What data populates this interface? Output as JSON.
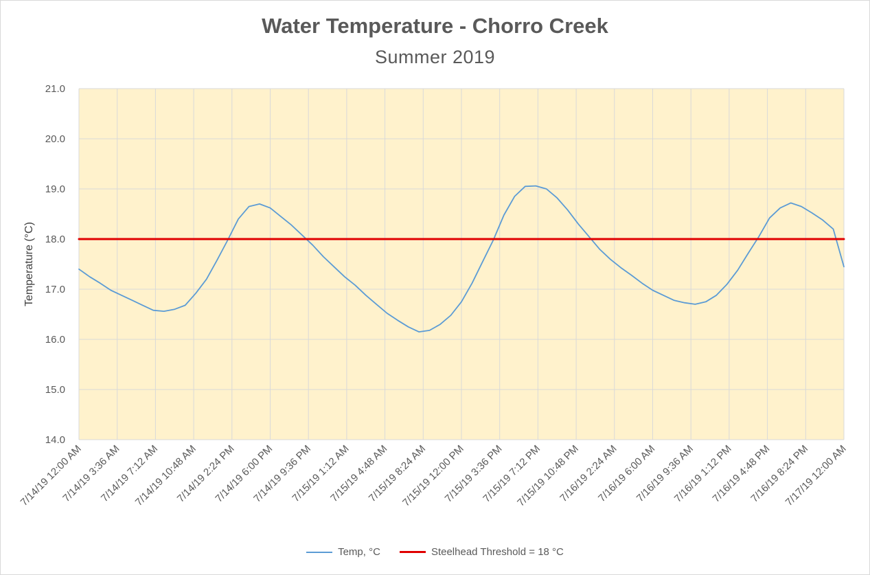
{
  "chart_data": {
    "type": "line",
    "title": "Water Temperature - Chorro Creek",
    "subtitle": "Summer  2019",
    "xlabel": "",
    "ylabel": "Temperature (°C)",
    "ylim": [
      14.0,
      21.0
    ],
    "y_ticks": [
      "14.0",
      "15.0",
      "16.0",
      "17.0",
      "18.0",
      "19.0",
      "20.0",
      "21.0"
    ],
    "x_range_hours": [
      0,
      72
    ],
    "x_ticks": [
      "7/14/19 12:00 AM",
      "7/14/19 3:36 AM",
      "7/14/19 7:12 AM",
      "7/14/19 10:48 AM",
      "7/14/19 2:24 PM",
      "7/14/19 6:00 PM",
      "7/14/19 9:36 PM",
      "7/15/19 1:12 AM",
      "7/15/19 4:48 AM",
      "7/15/19 8:24 AM",
      "7/15/19 12:00 PM",
      "7/15/19 3:36 PM",
      "7/15/19 7:12 PM",
      "7/15/19 10:48 PM",
      "7/16/19 2:24 AM",
      "7/16/19 6:00 AM",
      "7/16/19 9:36 AM",
      "7/16/19 1:12 PM",
      "7/16/19 4:48 PM",
      "7/16/19 8:24 PM",
      "7/17/19 12:00 AM"
    ],
    "grid": true,
    "plot_background": "#fff2cc",
    "series": [
      {
        "name": "Temp, °C",
        "color": "#5b9bd5",
        "x_hours": [
          0,
          1,
          2,
          3,
          4,
          5,
          6,
          7,
          8,
          9,
          10,
          11,
          12,
          13,
          14,
          15,
          16,
          17,
          18,
          19,
          20,
          21,
          22,
          23,
          24,
          25,
          26,
          27,
          28,
          29,
          30,
          31,
          32,
          33,
          34,
          35,
          36,
          37,
          38,
          39,
          40,
          41,
          42,
          43,
          44,
          45,
          46,
          47,
          48,
          49,
          50,
          51,
          52,
          53,
          54,
          55,
          56,
          57,
          58,
          59,
          60,
          61,
          62,
          63,
          64,
          65,
          66,
          67,
          68,
          69,
          70,
          71,
          72
        ],
        "values": [
          17.4,
          17.25,
          17.12,
          16.98,
          16.88,
          16.78,
          16.68,
          16.58,
          16.56,
          16.6,
          16.68,
          16.92,
          17.2,
          17.58,
          17.98,
          18.4,
          18.65,
          18.7,
          18.62,
          18.45,
          18.28,
          18.08,
          17.88,
          17.65,
          17.45,
          17.25,
          17.08,
          16.88,
          16.7,
          16.52,
          16.38,
          16.25,
          16.15,
          16.18,
          16.3,
          16.48,
          16.75,
          17.12,
          17.55,
          17.98,
          18.48,
          18.85,
          19.05,
          19.06,
          19.0,
          18.82,
          18.58,
          18.3,
          18.05,
          17.8,
          17.6,
          17.43,
          17.28,
          17.12,
          16.98,
          16.88,
          16.78,
          16.73,
          16.7,
          16.75,
          16.88,
          17.1,
          17.38,
          17.72,
          18.05,
          18.42,
          18.62,
          18.72,
          18.65,
          18.52,
          18.38,
          18.2,
          17.45
        ]
      },
      {
        "name": "Steelhead Threshold = 18 °C",
        "color": "#e00000",
        "x_hours": [
          0,
          72
        ],
        "values": [
          18.0,
          18.0
        ]
      }
    ]
  }
}
